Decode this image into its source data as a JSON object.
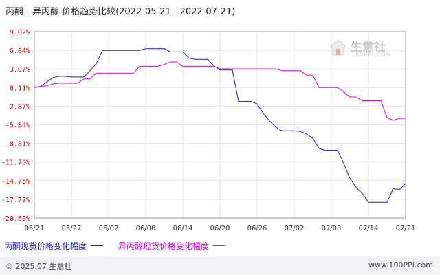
{
  "title": "丙酮 - 异丙醇 价格趋势比较(2022-05-21 - 2022-07-21)",
  "watermark": {
    "name_cn": "生意社",
    "name_en": "100PPI.COM"
  },
  "footer": {
    "copyright": "© 2025.07 生意社",
    "website": "www.100PPI.com"
  },
  "colors": {
    "series1": "#1a1ad0",
    "series2": "#e000e0",
    "ytick": "#cc0000",
    "grid": "#e3e3e3",
    "footer_bg": "#f0f2f5"
  },
  "chart_data": {
    "type": "line",
    "title": "丙酮 - 异丙醇 价格趋势比较(2022-05-21 - 2022-07-21)",
    "xlabel": "",
    "ylabel": "",
    "ylim": [
      -20.69,
      9.02
    ],
    "y_ticks": [
      "9.02%",
      "6.04%",
      "3.07%",
      "0.11%",
      "-2.87%",
      "-5.84%",
      "-8.81%",
      "-11.78%",
      "-14.75%",
      "-17.72%",
      "-20.69%"
    ],
    "x_ticks": [
      "05/21",
      "05/27",
      "06/02",
      "06/08",
      "06/14",
      "06/20",
      "06/26",
      "07/02",
      "07/08",
      "07/14",
      "07/21"
    ],
    "grid": true,
    "legend_position": "bottom-left",
    "series": [
      {
        "name": "丙酮现货价格变化幅度",
        "color": "#1a1ad0",
        "points": [
          [
            0,
            0.11
          ],
          [
            1,
            0.3
          ],
          [
            2,
            1
          ],
          [
            3,
            1.7
          ],
          [
            4,
            1.9
          ],
          [
            5,
            1.9
          ],
          [
            6,
            1.8
          ],
          [
            7,
            1.8
          ],
          [
            8,
            1.8
          ],
          [
            9,
            2.8
          ],
          [
            10,
            3.9
          ],
          [
            11,
            6.04
          ],
          [
            12,
            6.04
          ],
          [
            13,
            6.04
          ],
          [
            14,
            6.04
          ],
          [
            15,
            6.04
          ],
          [
            16,
            6.04
          ],
          [
            17,
            6.04
          ],
          [
            18,
            6.3
          ],
          [
            19,
            6.3
          ],
          [
            20,
            6.3
          ],
          [
            21,
            6.3
          ],
          [
            22,
            5.8
          ],
          [
            23,
            5.8
          ],
          [
            24,
            5.8
          ],
          [
            25,
            4.8
          ],
          [
            26,
            4.6
          ],
          [
            27,
            4.6
          ],
          [
            28,
            4.6
          ],
          [
            29,
            3.6
          ],
          [
            30,
            2.9
          ],
          [
            31,
            2.9
          ],
          [
            32,
            2.9
          ],
          [
            33,
            -2.1
          ],
          [
            34,
            -2.1
          ],
          [
            35,
            -2.1
          ],
          [
            36,
            -2.5
          ],
          [
            37,
            -4
          ],
          [
            38,
            -5.2
          ],
          [
            39,
            -6.2
          ],
          [
            40,
            -6.8
          ],
          [
            41,
            -6.8
          ],
          [
            42,
            -6.8
          ],
          [
            43,
            -6.9
          ],
          [
            44,
            -7.3
          ],
          [
            45,
            -8
          ],
          [
            46,
            -9.6
          ],
          [
            47,
            -9.9
          ],
          [
            48,
            -9.9
          ],
          [
            49,
            -9.9
          ],
          [
            50,
            -12
          ],
          [
            51,
            -14.4
          ],
          [
            52,
            -15.8
          ],
          [
            53,
            -16.8
          ],
          [
            54,
            -18.2
          ],
          [
            55,
            -18.2
          ],
          [
            56,
            -18.2
          ],
          [
            57,
            -18.2
          ],
          [
            58,
            -16
          ],
          [
            59,
            -16.2
          ],
          [
            60,
            -15.2
          ]
        ]
      },
      {
        "name": "异丙醇现货价格变化幅度",
        "color": "#e000e0",
        "points": [
          [
            0,
            0.11
          ],
          [
            1,
            0.3
          ],
          [
            2,
            0.4
          ],
          [
            3,
            0.7
          ],
          [
            4,
            0.8
          ],
          [
            5,
            0.8
          ],
          [
            6,
            0.8
          ],
          [
            7,
            0.8
          ],
          [
            8,
            1.5
          ],
          [
            9,
            1.5
          ],
          [
            10,
            2.4
          ],
          [
            11,
            2.4
          ],
          [
            12,
            2.4
          ],
          [
            13,
            2.4
          ],
          [
            14,
            2.4
          ],
          [
            15,
            2.4
          ],
          [
            16,
            2.4
          ],
          [
            17,
            3.5
          ],
          [
            18,
            3.5
          ],
          [
            19,
            3.5
          ],
          [
            20,
            3.5
          ],
          [
            21,
            3.8
          ],
          [
            22,
            4.2
          ],
          [
            23,
            4.2
          ],
          [
            24,
            3.5
          ],
          [
            25,
            3.5
          ],
          [
            26,
            3.5
          ],
          [
            27,
            3.5
          ],
          [
            28,
            3.5
          ],
          [
            29,
            3.5
          ],
          [
            30,
            3.1
          ],
          [
            31,
            3.1
          ],
          [
            32,
            3.1
          ],
          [
            33,
            3.1
          ],
          [
            34,
            3.1
          ],
          [
            35,
            3.1
          ],
          [
            36,
            3.1
          ],
          [
            37,
            3.1
          ],
          [
            38,
            3.1
          ],
          [
            39,
            3.1
          ],
          [
            40,
            2.8
          ],
          [
            41,
            2.8
          ],
          [
            42,
            2.8
          ],
          [
            43,
            2.8
          ],
          [
            44,
            2.1
          ],
          [
            45,
            2.1
          ],
          [
            46,
            0.11
          ],
          [
            47,
            0.11
          ],
          [
            48,
            0.11
          ],
          [
            49,
            0.11
          ],
          [
            50,
            -0.6
          ],
          [
            51,
            -1.4
          ],
          [
            52,
            -1.4
          ],
          [
            53,
            -2
          ],
          [
            54,
            -2
          ],
          [
            55,
            -2
          ],
          [
            56,
            -2
          ],
          [
            57,
            -4.7
          ],
          [
            58,
            -5.1
          ],
          [
            59,
            -4.8
          ],
          [
            60,
            -4.8
          ]
        ]
      }
    ]
  }
}
